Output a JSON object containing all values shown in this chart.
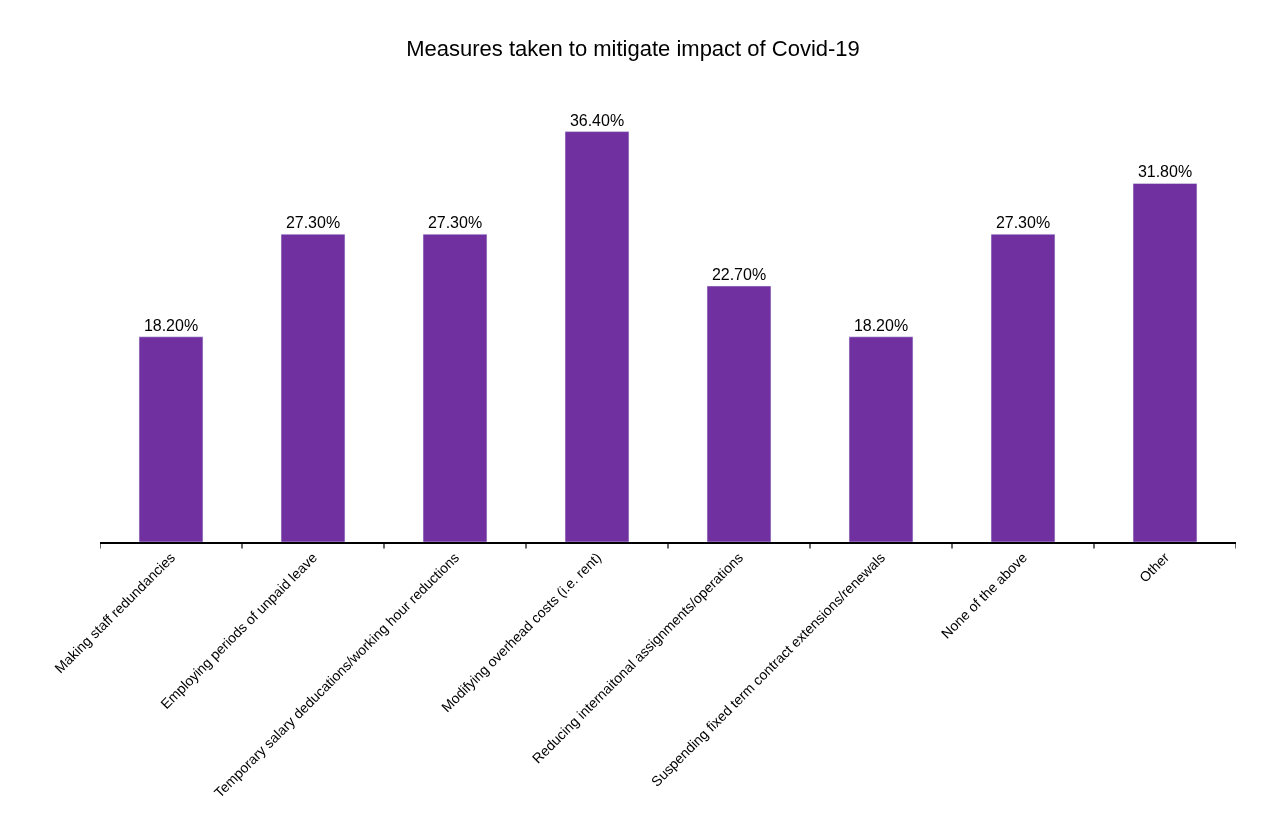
{
  "chart_data": {
    "type": "bar",
    "title": "Measures taken to mitigate impact of Covid-19",
    "categories": [
      "Making staff redundancies",
      "Employing periods of unpaid leave",
      "Temporary salary deducations/working hour reductions",
      "Modifying overhead costs (i.e. rent)",
      "Reducing internaitonal assignments/operations",
      "Suspending fixed term contract extensions/renewals",
      "None of the above",
      "Other"
    ],
    "values": [
      18.2,
      27.3,
      27.3,
      36.4,
      22.7,
      18.2,
      27.3,
      31.8
    ],
    "value_labels": [
      "18.20%",
      "27.30%",
      "27.30%",
      "36.40%",
      "22.70%",
      "18.20%",
      "27.30%",
      "31.80%"
    ],
    "color": "#7030a0",
    "legend": false
  }
}
